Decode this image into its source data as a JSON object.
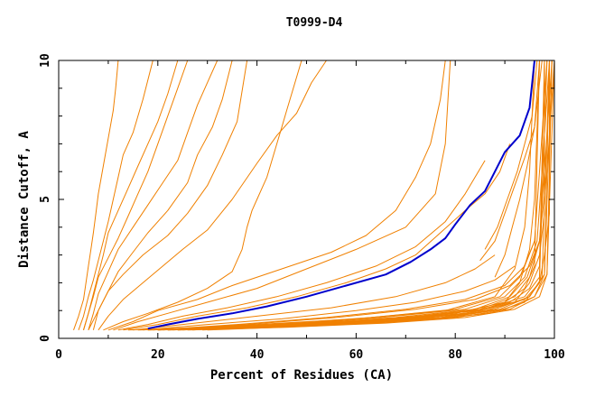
{
  "chart_data": {
    "type": "line",
    "title": "T0999-D4",
    "xlabel": "Percent of Residues (CA)",
    "ylabel": "Distance Cutoff, A",
    "xlim": [
      0,
      100
    ],
    "ylim": [
      0,
      10
    ],
    "x_ticks": [
      "0",
      "20",
      "40",
      "60",
      "80",
      "100"
    ],
    "y_ticks": [
      "0",
      "5",
      "10"
    ],
    "grid": false,
    "legend": "none",
    "colors": {
      "other_models": "#f08000",
      "highlight": "#0000cc",
      "axes": "#000000"
    },
    "highlight_series": {
      "x": [
        18,
        22,
        28,
        35,
        42,
        50,
        58,
        66,
        71,
        75,
        78,
        80,
        83,
        86,
        88,
        90,
        93,
        95,
        96
      ],
      "y": [
        0.35,
        0.5,
        0.7,
        0.9,
        1.15,
        1.5,
        1.9,
        2.3,
        2.75,
        3.2,
        3.6,
        4.1,
        4.8,
        5.3,
        6.0,
        6.7,
        7.3,
        8.3,
        10
      ]
    },
    "series": [
      {
        "x": [
          3,
          4,
          5,
          5.5,
          6,
          6.5,
          7,
          7.5,
          8,
          9,
          10,
          11,
          11.5,
          12
        ],
        "y": [
          0.3,
          0.8,
          1.4,
          2.0,
          2.6,
          3.2,
          3.8,
          4.5,
          5.2,
          6.2,
          7.2,
          8.2,
          9.0,
          10
        ]
      },
      {
        "x": [
          4,
          5,
          6,
          7,
          8,
          9,
          10,
          11,
          12,
          13,
          15,
          16,
          17,
          18,
          19
        ],
        "y": [
          0.3,
          0.8,
          1.5,
          2.1,
          2.8,
          3.5,
          4.2,
          5.0,
          5.8,
          6.6,
          7.4,
          8.0,
          8.6,
          9.3,
          10
        ]
      },
      {
        "x": [
          5,
          6,
          7,
          8,
          9,
          10,
          12,
          14,
          16,
          18,
          20,
          22,
          24
        ],
        "y": [
          0.3,
          0.9,
          1.6,
          2.3,
          3.0,
          3.8,
          4.6,
          5.4,
          6.2,
          7.0,
          7.8,
          8.8,
          10
        ]
      },
      {
        "x": [
          5,
          6,
          7,
          8,
          10,
          12,
          14,
          16,
          18,
          20,
          22,
          24,
          26
        ],
        "y": [
          0.3,
          0.9,
          1.5,
          2.2,
          2.9,
          3.6,
          4.4,
          5.2,
          6.0,
          7.0,
          8.0,
          9.0,
          10
        ]
      },
      {
        "x": [
          6,
          7,
          8,
          10,
          12,
          15,
          18,
          21,
          24,
          26,
          28,
          30,
          32
        ],
        "y": [
          0.3,
          0.9,
          1.6,
          2.4,
          3.2,
          4.0,
          4.8,
          5.6,
          6.4,
          7.4,
          8.4,
          9.2,
          10
        ]
      },
      {
        "x": [
          6,
          8,
          10,
          12,
          15,
          18,
          22,
          26,
          28,
          31,
          33,
          35
        ],
        "y": [
          0.3,
          1.0,
          1.7,
          2.4,
          3.1,
          3.8,
          4.6,
          5.6,
          6.6,
          7.6,
          8.6,
          10
        ]
      },
      {
        "x": [
          7,
          8,
          10,
          13,
          17,
          22,
          26,
          30,
          33,
          36,
          38
        ],
        "y": [
          0.3,
          1.0,
          1.7,
          2.3,
          3.0,
          3.7,
          4.5,
          5.5,
          6.6,
          7.8,
          10
        ]
      },
      {
        "x": [
          8,
          10,
          13,
          17,
          21,
          25,
          30,
          35,
          40,
          44,
          48,
          51,
          54
        ],
        "y": [
          0.3,
          0.8,
          1.4,
          2.0,
          2.6,
          3.2,
          3.9,
          5.0,
          6.3,
          7.3,
          8.1,
          9.2,
          10
        ]
      },
      {
        "x": [
          9,
          13,
          18,
          24,
          30,
          35,
          37,
          38,
          39,
          40,
          41,
          42,
          43,
          44,
          45,
          46,
          47,
          48,
          49
        ],
        "y": [
          0.3,
          0.6,
          0.9,
          1.3,
          1.8,
          2.4,
          3.2,
          4.0,
          4.6,
          5.0,
          5.4,
          5.8,
          6.4,
          7.0,
          7.6,
          8.2,
          8.8,
          9.4,
          10
        ]
      },
      {
        "x": [
          10,
          15,
          20,
          28,
          35,
          45,
          55,
          62,
          68,
          72,
          75,
          77,
          78
        ],
        "y": [
          0.3,
          0.6,
          1.0,
          1.4,
          1.9,
          2.5,
          3.1,
          3.7,
          4.6,
          5.8,
          7.0,
          8.6,
          10
        ]
      },
      {
        "x": [
          11,
          16,
          22,
          30,
          40,
          50,
          60,
          70,
          76,
          78,
          79
        ],
        "y": [
          0.3,
          0.6,
          0.9,
          1.3,
          1.8,
          2.5,
          3.2,
          4.0,
          5.2,
          7.0,
          10
        ]
      },
      {
        "x": [
          12,
          18,
          25,
          34,
          44,
          54,
          64,
          72,
          78,
          82,
          86
        ],
        "y": [
          0.3,
          0.5,
          0.8,
          1.1,
          1.5,
          2.0,
          2.6,
          3.3,
          4.2,
          5.2,
          6.4
        ]
      },
      {
        "x": [
          13,
          20,
          28,
          38,
          48,
          58,
          66,
          72,
          77,
          82,
          86,
          89,
          91
        ],
        "y": [
          0.3,
          0.5,
          0.8,
          1.1,
          1.5,
          2.0,
          2.5,
          3.0,
          3.8,
          4.6,
          5.2,
          6.0,
          7.0
        ]
      },
      {
        "x": [
          15,
          25,
          40,
          55,
          68,
          78,
          84,
          88
        ],
        "y": [
          0.3,
          0.5,
          0.8,
          1.1,
          1.5,
          2.0,
          2.5,
          3.0
        ]
      },
      {
        "x": [
          17,
          30,
          45,
          60,
          72,
          82,
          88,
          92
        ],
        "y": [
          0.3,
          0.5,
          0.7,
          1.0,
          1.3,
          1.7,
          2.1,
          2.6
        ]
      },
      {
        "x": [
          14,
          30,
          50,
          70,
          85,
          94,
          97,
          98
        ],
        "y": [
          0.3,
          0.4,
          0.55,
          0.75,
          1.0,
          1.4,
          2.0,
          10
        ]
      },
      {
        "x": [
          16,
          35,
          55,
          72,
          86,
          94,
          97,
          98.5
        ],
        "y": [
          0.3,
          0.4,
          0.55,
          0.75,
          1.05,
          1.5,
          2.2,
          10
        ]
      },
      {
        "x": [
          18,
          38,
          58,
          75,
          88,
          95,
          97.5,
          99
        ],
        "y": [
          0.3,
          0.4,
          0.55,
          0.75,
          1.05,
          1.5,
          2.2,
          10
        ]
      },
      {
        "x": [
          20,
          40,
          60,
          77,
          89,
          95,
          98,
          99
        ],
        "y": [
          0.3,
          0.4,
          0.55,
          0.75,
          1.05,
          1.5,
          2.3,
          10
        ]
      },
      {
        "x": [
          22,
          42,
          62,
          78,
          90,
          96,
          98,
          99.5
        ],
        "y": [
          0.3,
          0.4,
          0.55,
          0.75,
          1.05,
          1.5,
          2.3,
          10
        ]
      },
      {
        "x": [
          24,
          44,
          64,
          80,
          91,
          96,
          98.5,
          99.5
        ],
        "y": [
          0.3,
          0.4,
          0.55,
          0.75,
          1.05,
          1.5,
          2.3,
          10
        ]
      },
      {
        "x": [
          26,
          46,
          66,
          82,
          92,
          97,
          98.5,
          100
        ],
        "y": [
          0.3,
          0.4,
          0.55,
          0.75,
          1.05,
          1.5,
          2.3,
          10
        ]
      },
      {
        "x": [
          18,
          40,
          62,
          80,
          90,
          94,
          96,
          97
        ],
        "y": [
          0.3,
          0.45,
          0.65,
          0.9,
          1.3,
          1.8,
          2.6,
          10
        ]
      },
      {
        "x": [
          20,
          42,
          64,
          82,
          91,
          95,
          97,
          98
        ],
        "y": [
          0.3,
          0.45,
          0.65,
          0.9,
          1.3,
          1.8,
          2.6,
          10
        ]
      },
      {
        "x": [
          19,
          36,
          54,
          70,
          82,
          90,
          94,
          96
        ],
        "y": [
          0.3,
          0.5,
          0.75,
          1.05,
          1.4,
          1.9,
          2.6,
          3.5
        ]
      },
      {
        "x": [
          21,
          38,
          56,
          72,
          84,
          91,
          95,
          97
        ],
        "y": [
          0.3,
          0.5,
          0.75,
          1.05,
          1.4,
          1.9,
          2.6,
          3.5
        ]
      },
      {
        "x": [
          23,
          43,
          63,
          80,
          89,
          93,
          96,
          97,
          98.5
        ],
        "y": [
          0.3,
          0.5,
          0.75,
          1.05,
          1.5,
          2.2,
          3.5,
          6.0,
          10
        ]
      },
      {
        "x": [
          25,
          45,
          65,
          82,
          90,
          94,
          96.5,
          97.5,
          99
        ],
        "y": [
          0.3,
          0.5,
          0.75,
          1.05,
          1.5,
          2.2,
          3.5,
          6.0,
          10
        ]
      },
      {
        "x": [
          27,
          48,
          68,
          84,
          91,
          94.5,
          97,
          98,
          99.5
        ],
        "y": [
          0.3,
          0.5,
          0.75,
          1.05,
          1.5,
          2.2,
          3.5,
          6.0,
          10
        ]
      },
      {
        "x": [
          29,
          50,
          70,
          85,
          92,
          95,
          97,
          98.5,
          100
        ],
        "y": [
          0.3,
          0.5,
          0.75,
          1.05,
          1.5,
          2.2,
          3.5,
          6.0,
          10
        ]
      },
      {
        "x": [
          22,
          44,
          66,
          83,
          90,
          93,
          95,
          96,
          97
        ],
        "y": [
          0.3,
          0.45,
          0.65,
          0.9,
          1.3,
          2.0,
          3.2,
          5.0,
          10
        ]
      },
      {
        "x": [
          20,
          40,
          60,
          78,
          88,
          92,
          94,
          95,
          96
        ],
        "y": [
          0.3,
          0.5,
          0.7,
          1.0,
          1.5,
          2.5,
          4.0,
          6.0,
          10
        ]
      },
      {
        "x": [
          24,
          46,
          68,
          84,
          92,
          95,
          97,
          98,
          98
        ],
        "y": [
          0.3,
          0.45,
          0.65,
          0.9,
          1.3,
          2.0,
          3.0,
          4.5,
          10
        ]
      },
      {
        "x": [
          30,
          52,
          72,
          87,
          94,
          97,
          98,
          99,
          99
        ],
        "y": [
          0.3,
          0.45,
          0.65,
          0.9,
          1.3,
          2.0,
          3.0,
          4.5,
          10
        ]
      },
      {
        "x": [
          85,
          88,
          90,
          92,
          94,
          96,
          97
        ],
        "y": [
          2.8,
          3.5,
          4.5,
          5.5,
          6.5,
          7.6,
          10
        ]
      },
      {
        "x": [
          88,
          90,
          91.5,
          93,
          94.5,
          96,
          97.5
        ],
        "y": [
          2.2,
          3.0,
          4.0,
          5.0,
          6.2,
          7.6,
          10
        ]
      },
      {
        "x": [
          86,
          88.5,
          90.5,
          92.5,
          94,
          95.5,
          96.5
        ],
        "y": [
          3.2,
          4.0,
          5.0,
          6.0,
          7.0,
          8.0,
          10
        ]
      }
    ]
  }
}
